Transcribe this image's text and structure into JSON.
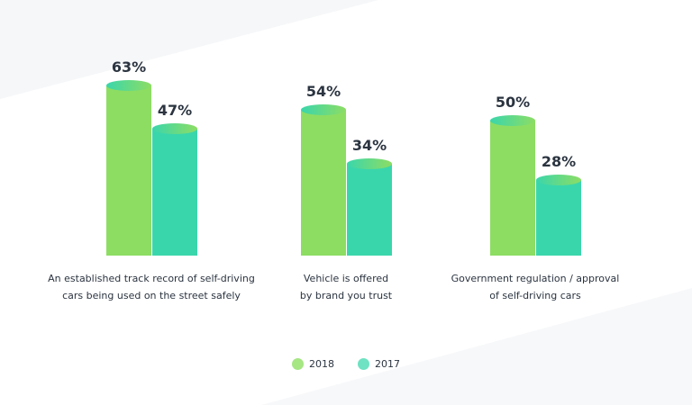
{
  "chart_data": {
    "type": "bar",
    "categories": [
      [
        "An established track record of self-driving",
        "cars being used on the street safely"
      ],
      [
        "Vehicle is offered",
        "by brand you trust"
      ],
      [
        "Government regulation / approval",
        "of self-driving cars"
      ]
    ],
    "series": [
      {
        "name": "2018",
        "values": [
          63,
          54,
          50
        ],
        "color": "#8ddd63"
      },
      {
        "name": "2017",
        "values": [
          47,
          34,
          28
        ],
        "color": "#3ad6ab"
      }
    ],
    "value_suffix": "%",
    "ylim": [
      0,
      70
    ],
    "grid": false,
    "legend": "bottom-center"
  },
  "legend_colors": [
    "#a6e683",
    "#6ee2c2"
  ]
}
